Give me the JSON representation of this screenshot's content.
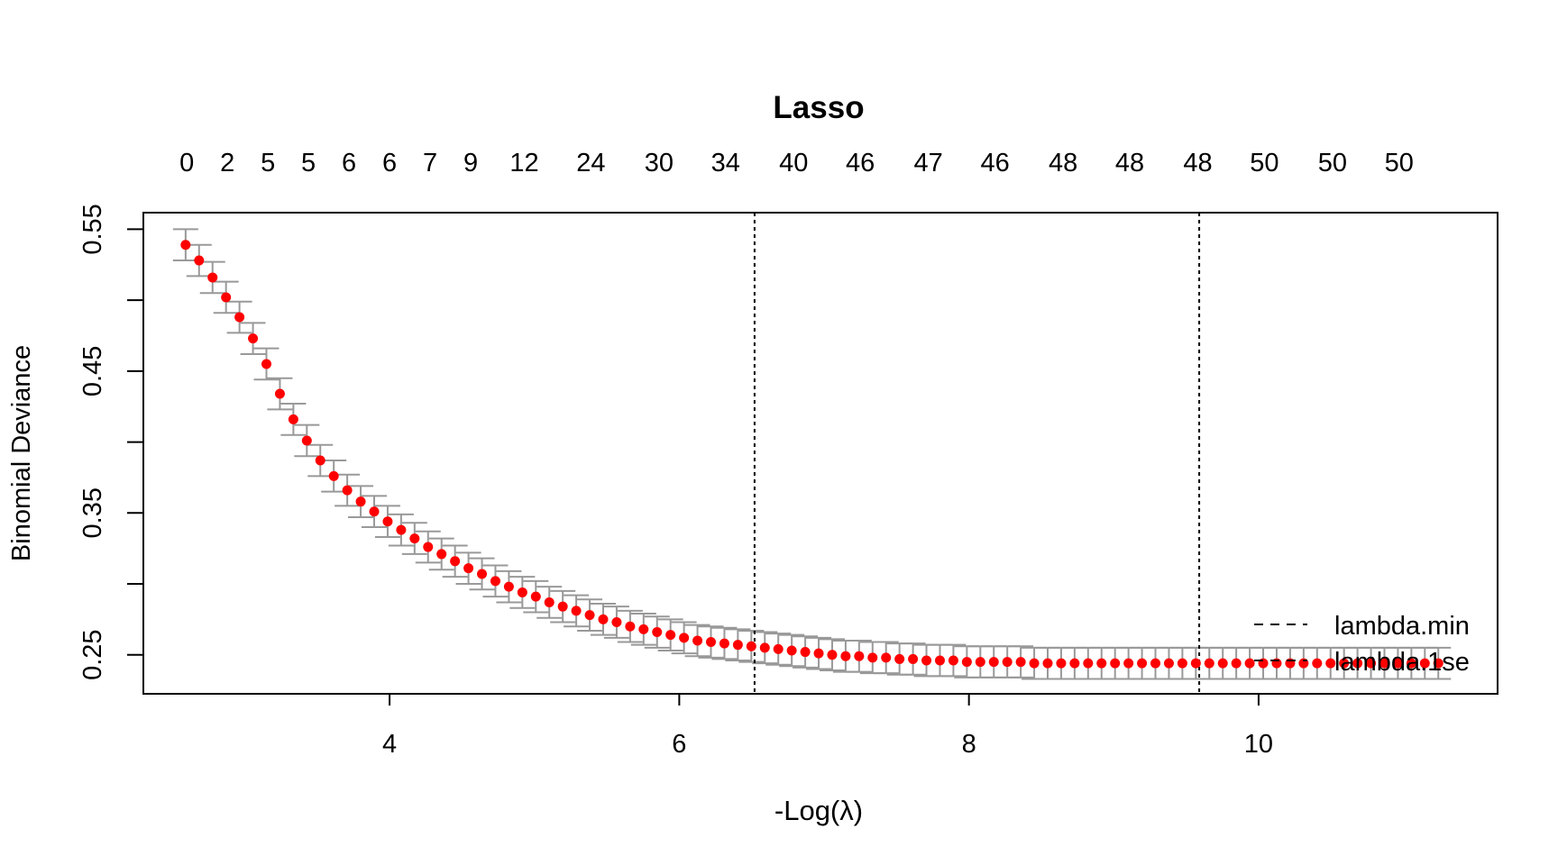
{
  "chart_data": {
    "type": "scatter",
    "title": "Lasso",
    "xlabel": "-Log(λ)",
    "ylabel": "Binomial Deviance",
    "xlim": [
      2.3,
      11.65
    ],
    "ylim": [
      0.2225,
      0.5617
    ],
    "x_ticks": [
      4,
      6,
      8,
      10
    ],
    "x_tick_labels": [
      "4",
      "6",
      "8",
      "10"
    ],
    "y_ticks": [
      0.25,
      0.3,
      0.35,
      0.4,
      0.45,
      0.5,
      0.55
    ],
    "y_tick_labels": [
      "0.25",
      "",
      "0.35",
      "",
      "0.45",
      "",
      "0.55"
    ],
    "top_axis_labels": [
      "0",
      "2",
      "5",
      "5",
      "6",
      "6",
      "7",
      "9",
      "12",
      "24",
      "30",
      "34",
      "40",
      "46",
      "47",
      "46",
      "48",
      "48",
      "48",
      "50",
      "50",
      "50"
    ],
    "top_axis_positions": [
      2.6,
      2.88,
      3.16,
      3.44,
      3.72,
      4.0,
      4.28,
      4.56,
      4.93,
      5.39,
      5.86,
      6.32,
      6.79,
      7.25,
      7.72,
      8.18,
      8.65,
      9.11,
      9.58,
      10.04,
      10.51,
      10.97
    ],
    "vlines": [
      {
        "name": "lambda.min",
        "x": 6.52,
        "style": "dashed"
      },
      {
        "name": "lambda.1se",
        "x": 9.59,
        "style": "dashed"
      }
    ],
    "legend": {
      "position": "bottom-right",
      "entries": [
        {
          "label": "lambda.min",
          "style": "dashed"
        },
        {
          "label": "lambda.1se",
          "style": "dashed"
        }
      ]
    },
    "point_color": "#ff0000",
    "errorbar_color": "#999999",
    "series": [
      {
        "x_start": 2.5917,
        "x_step": 0.093,
        "y": [
          0.539,
          0.528,
          0.516,
          0.502,
          0.488,
          0.473,
          0.455,
          0.434,
          0.416,
          0.401,
          0.387,
          0.376,
          0.366,
          0.358,
          0.351,
          0.344,
          0.338,
          0.332,
          0.326,
          0.321,
          0.316,
          0.311,
          0.307,
          0.302,
          0.298,
          0.294,
          0.291,
          0.287,
          0.284,
          0.281,
          0.278,
          0.275,
          0.273,
          0.27,
          0.268,
          0.266,
          0.264,
          0.262,
          0.26,
          0.259,
          0.258,
          0.257,
          0.256,
          0.255,
          0.254,
          0.253,
          0.252,
          0.251,
          0.25,
          0.249,
          0.249,
          0.248,
          0.248,
          0.247,
          0.247,
          0.246,
          0.246,
          0.246,
          0.245,
          0.245,
          0.245,
          0.245,
          0.245,
          0.244,
          0.244,
          0.244,
          0.244,
          0.244,
          0.244,
          0.244,
          0.244,
          0.244,
          0.244,
          0.244,
          0.244,
          0.244,
          0.244,
          0.244,
          0.244,
          0.244,
          0.244,
          0.244,
          0.244,
          0.244,
          0.244,
          0.244,
          0.244,
          0.244,
          0.244,
          0.244,
          0.244,
          0.244,
          0.244,
          0.244
        ],
        "err": [
          0.011,
          0.011,
          0.011,
          0.011,
          0.011,
          0.011,
          0.011,
          0.011,
          0.011,
          0.011,
          0.011,
          0.011,
          0.011,
          0.011,
          0.011,
          0.011,
          0.011,
          0.011,
          0.011,
          0.011,
          0.011,
          0.011,
          0.011,
          0.011,
          0.011,
          0.011,
          0.011,
          0.011,
          0.011,
          0.011,
          0.011,
          0.011,
          0.011,
          0.011,
          0.011,
          0.011,
          0.011,
          0.011,
          0.011,
          0.011,
          0.011,
          0.011,
          0.011,
          0.011,
          0.011,
          0.011,
          0.011,
          0.011,
          0.011,
          0.011,
          0.011,
          0.011,
          0.011,
          0.011,
          0.011,
          0.011,
          0.011,
          0.011,
          0.011,
          0.011,
          0.011,
          0.011,
          0.011,
          0.011,
          0.011,
          0.011,
          0.011,
          0.011,
          0.011,
          0.011,
          0.011,
          0.011,
          0.011,
          0.011,
          0.011,
          0.011,
          0.011,
          0.011,
          0.011,
          0.011,
          0.011,
          0.011,
          0.011,
          0.011,
          0.011,
          0.011,
          0.011,
          0.011,
          0.011,
          0.011,
          0.011,
          0.011,
          0.011,
          0.011
        ]
      }
    ]
  }
}
